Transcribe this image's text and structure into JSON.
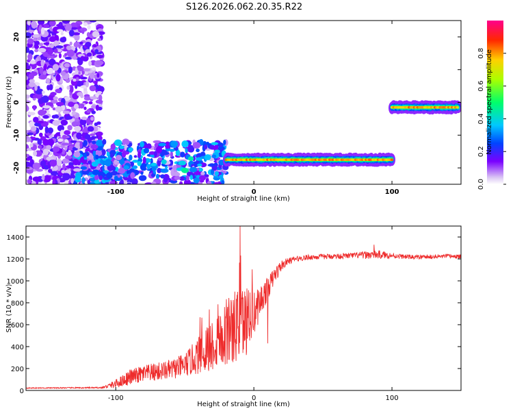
{
  "title": "S126.2026.062.20.35.R22",
  "chart_data": [
    {
      "type": "heatmap",
      "xlabel": "Height of straight line (km)",
      "ylabel": "Frequency (Hz)",
      "xlim": [
        -165,
        150
      ],
      "ylim": [
        -25,
        25
      ],
      "xticks": [
        -100,
        0,
        100
      ],
      "yticks": [
        -20,
        -10,
        0,
        10,
        20
      ],
      "colorbar": {
        "label": "Normalized spectral amplitude",
        "range": [
          0,
          1
        ],
        "ticks": [
          "0.0",
          "0.2",
          "0.4",
          "0.6",
          "0.8"
        ],
        "colormap": "rainbow"
      },
      "features": [
        {
          "kind": "noise",
          "x": [
            -165,
            -110
          ],
          "y": [
            -25,
            25
          ],
          "amplitude": 0.15
        },
        {
          "kind": "noise",
          "x": [
            -130,
            -20
          ],
          "y": [
            -25,
            -12
          ],
          "amplitude": 0.3
        },
        {
          "kind": "track",
          "x": [
            -20,
            100
          ],
          "y": -17.5,
          "amplitude": 0.85
        },
        {
          "kind": "track",
          "x": [
            100,
            148
          ],
          "y": -1.5,
          "amplitude": 0.85
        }
      ]
    },
    {
      "type": "line",
      "xlabel": "Height of straight line (km)",
      "ylabel": "SNR (10 * v/v)",
      "xlim": [
        -165,
        150
      ],
      "ylim": [
        0,
        1500
      ],
      "xticks": [
        -100,
        0,
        100
      ],
      "yticks": [
        0,
        200,
        400,
        600,
        800,
        1000,
        1200,
        1400
      ],
      "color": "#ee2b2b",
      "envelope_x": [
        -165,
        -110,
        -100,
        -90,
        -80,
        -70,
        -60,
        -50,
        -40,
        -30,
        -25,
        -20,
        -15,
        -10,
        -5,
        0,
        5,
        10,
        15,
        20,
        25,
        30,
        40,
        50,
        60,
        70,
        80,
        90,
        100,
        110,
        120,
        130,
        140,
        150
      ],
      "envelope_y": [
        22,
        25,
        60,
        120,
        150,
        170,
        190,
        230,
        320,
        420,
        480,
        520,
        560,
        600,
        650,
        700,
        820,
        930,
        1050,
        1140,
        1180,
        1200,
        1215,
        1220,
        1225,
        1230,
        1235,
        1240,
        1230,
        1220,
        1215,
        1220,
        1225,
        1220
      ],
      "noise_amplitude": [
        4,
        6,
        40,
        70,
        80,
        85,
        90,
        110,
        170,
        250,
        280,
        300,
        330,
        350,
        320,
        200,
        150,
        100,
        80,
        50,
        30,
        25,
        25,
        25,
        25,
        25,
        35,
        40,
        25,
        20,
        20,
        20,
        20,
        20
      ],
      "peaks": [
        {
          "x": -10,
          "y": 1500
        },
        {
          "x": 87,
          "y": 1330
        },
        {
          "x": 10,
          "y": 430
        }
      ]
    }
  ]
}
